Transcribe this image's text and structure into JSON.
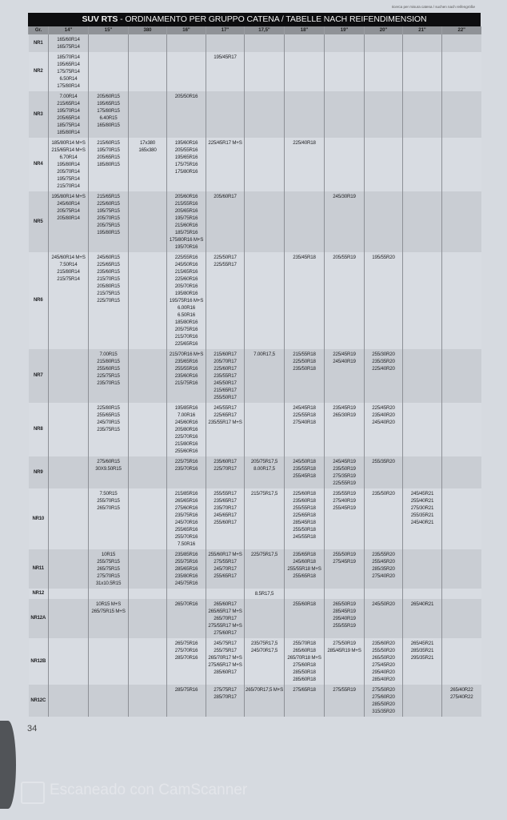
{
  "header_note": "ricerca per misura catena / suchen nach reifengröße",
  "title": {
    "brand": "SUV RTS",
    "text": " - ORDINAMENTO PER GRUPPO CATENA / TABELLE NACH REIFENDIMENSION"
  },
  "columns": [
    "Gr.",
    "14\"",
    "15\"",
    "380",
    "16\"",
    "17\"",
    "17,5\"",
    "18\"",
    "19\"",
    "20\"",
    "21\"",
    "22\""
  ],
  "rows": [
    {
      "group": "NR1",
      "cells": [
        [
          "165/60R14",
          "165/75R14"
        ],
        [],
        [],
        [],
        [],
        [],
        [],
        [],
        [],
        [],
        []
      ]
    },
    {
      "group": "NR2",
      "cells": [
        [
          "185/70R14",
          "195/65R14",
          "175/75R14",
          "6.50R14",
          "175/80R14"
        ],
        [],
        [],
        [],
        [
          "195/45R17"
        ],
        [],
        [],
        [],
        [],
        [],
        []
      ]
    },
    {
      "group": "NR3",
      "cells": [
        [
          "7.00R14",
          "215/65R14",
          "195/70R14",
          "205/65R14",
          "185/75R14",
          "185/80R14"
        ],
        [
          "205/60R15",
          "195/65R15",
          "175/80R15",
          "6.40R15",
          "165/80R15"
        ],
        [],
        [
          "205/50R16"
        ],
        [],
        [],
        [],
        [],
        [],
        [],
        []
      ]
    },
    {
      "group": "NR4",
      "cells": [
        [
          "185/80R14 M+S",
          "215/65R14 M+S",
          "6.70R14",
          "195/80R14",
          "205/70R14",
          "195/75R14",
          "215/70R14"
        ],
        [
          "215/60R15",
          "195/70R15",
          "205/65R15",
          "185/80R15"
        ],
        [
          "17x380",
          "165x380"
        ],
        [
          "195/60R16",
          "205/55R16",
          "195/65R16",
          "175/75R16",
          "175/80R16"
        ],
        [
          "225/45R17 M+S"
        ],
        [],
        [
          "225/40R18"
        ],
        [],
        [],
        [],
        []
      ]
    },
    {
      "group": "NR5",
      "cells": [
        [
          "195/80R14 M+S",
          "245/60R14",
          "205/75R14",
          "205/80R14"
        ],
        [
          "215/65R15",
          "225/60R15",
          "195/75R15",
          "205/70R15",
          "205/75R15",
          "195/80R15"
        ],
        [],
        [
          "205/60R16",
          "215/55R16",
          "205/65R16",
          "195/75R16",
          "215/60R16",
          "185/75R16",
          "175/80R16 M+S",
          "195/70R16"
        ],
        [
          "205/60R17"
        ],
        [],
        [],
        [
          "245/30R19"
        ],
        [],
        [],
        []
      ]
    },
    {
      "group": "NR6",
      "cells": [
        [
          "245/60R14 M+S",
          "7.50R14",
          "215/80R14",
          "215/75R14"
        ],
        [
          "245/60R15",
          "225/65R15",
          "235/60R15",
          "215/70R15",
          "205/80R15",
          "215/75R15",
          "225/70R15"
        ],
        [],
        [
          "225/55R16",
          "245/50R16",
          "215/65R16",
          "225/60R16",
          "205/70R16",
          "195/80R16",
          "195/75R16 M+S",
          "6.00R16",
          "6.50R16",
          "185/80R16",
          "205/75R16",
          "215/70R16",
          "225/65R16"
        ],
        [
          "225/50R17",
          "225/55R17"
        ],
        [],
        [
          "235/45R18"
        ],
        [
          "205/55R19"
        ],
        [
          "195/55R20"
        ],
        [],
        []
      ]
    },
    {
      "group": "NR7",
      "cells": [
        [],
        [
          "7.00R15",
          "215/80R15",
          "255/60R15",
          "225/75R15",
          "235/70R15"
        ],
        [],
        [
          "215/70R16 M+S",
          "235/65R16",
          "255/55R16",
          "235/60R16",
          "215/75R16"
        ],
        [
          "215/60R17",
          "205/70R17",
          "225/60R17",
          "235/55R17",
          "245/50R17",
          "215/65R17",
          "255/50R17"
        ],
        [
          "7.00R17,5"
        ],
        [
          "215/55R18",
          "225/50R18",
          "235/50R18"
        ],
        [
          "225/45R19",
          "245/40R19"
        ],
        [
          "255/30R20",
          "235/35R20",
          "225/40R20"
        ],
        [],
        []
      ]
    },
    {
      "group": "NR8",
      "cells": [
        [],
        [
          "225/80R15",
          "255/65R15",
          "245/70R15",
          "235/75R15"
        ],
        [],
        [
          "195/85R16",
          "7.00R16",
          "245/60R16",
          "205/80R16",
          "225/70R16",
          "215/80R16",
          "255/60R16"
        ],
        [
          "245/55R17",
          "225/65R17",
          "235/55R17 M+S"
        ],
        [],
        [
          "245/45R18",
          "225/55R18",
          "275/40R18"
        ],
        [
          "235/45R19",
          "265/30R19"
        ],
        [
          "225/45R20",
          "235/40R20",
          "245/40R20"
        ],
        [],
        []
      ]
    },
    {
      "group": "NR9",
      "cells": [
        [],
        [
          "275/60R15",
          "30X9.50R15"
        ],
        [],
        [
          "225/75R16",
          "235/70R16"
        ],
        [
          "235/60R17",
          "225/70R17"
        ],
        [
          "205/75R17,5",
          "8.00R17,5"
        ],
        [
          "245/50R18",
          "235/55R18",
          "255/45R18"
        ],
        [
          "245/45R19",
          "235/50R19",
          "275/35R19",
          "225/55R19"
        ],
        [
          "255/35R20"
        ],
        [],
        []
      ]
    },
    {
      "group": "NR10",
      "cells": [
        [],
        [
          "7.50R15",
          "255/70R15",
          "265/70R15"
        ],
        [],
        [
          "215/85R16",
          "265/65R16",
          "275/60R16",
          "235/75R16",
          "245/70R16",
          "255/65R16",
          "255/70R16",
          "7.50R16"
        ],
        [
          "255/55R17",
          "235/65R17",
          "235/70R17",
          "245/65R17",
          "255/60R17"
        ],
        [
          "215/75R17,5"
        ],
        [
          "225/60R18",
          "235/60R18",
          "255/55R18",
          "225/65R18",
          "285/45R18",
          "255/50R18",
          "245/55R18"
        ],
        [
          "235/55R19",
          "275/40R19",
          "255/45R19"
        ],
        [
          "235/50R20"
        ],
        [
          "245/45R21",
          "255/40R21",
          "275/30R21",
          "255/35R21",
          "245/40R21"
        ],
        []
      ]
    },
    {
      "group": "NR11",
      "cells": [
        [],
        [
          "10R15",
          "255/75R15",
          "265/75R15",
          "275/70R15",
          "31x10.5R15"
        ],
        [],
        [
          "235/85R16",
          "255/75R16",
          "285/65R16",
          "235/80R16",
          "245/75R16"
        ],
        [
          "255/60R17 M+S",
          "275/55R17",
          "245/70R17",
          "255/65R17"
        ],
        [
          "225/75R17,5"
        ],
        [
          "235/65R18",
          "245/60R18",
          "255/55R18 M+S",
          "255/65R18"
        ],
        [
          "255/50R19",
          "275/45R19"
        ],
        [
          "235/55R20",
          "255/45R20",
          "285/35R20",
          "275/40R20"
        ],
        [],
        []
      ]
    },
    {
      "group": "NR12",
      "cells": [
        [],
        [],
        [],
        [],
        [],
        [
          "8.5R17,5"
        ],
        [],
        [],
        [],
        [],
        []
      ]
    },
    {
      "group": "NR12A",
      "cells": [
        [],
        [
          "10R15 M+S",
          "265/75R15 M+S"
        ],
        [],
        [
          "265/70R16"
        ],
        [
          "265/60R17",
          "265/65R17 M+S",
          "265/70R17",
          "275/55R17 M+S",
          "275/60R17"
        ],
        [],
        [
          "255/60R18"
        ],
        [
          "265/50R19",
          "285/45R19",
          "295/40R19",
          "255/55R19"
        ],
        [
          "245/50R20"
        ],
        [
          "265/40R21"
        ],
        []
      ]
    },
    {
      "group": "NR12B",
      "cells": [
        [],
        [],
        [],
        [
          "265/75R16",
          "275/70R16",
          "285/70R16"
        ],
        [
          "245/75R17",
          "255/75R17",
          "265/70R17 M+S",
          "275/65R17 M+S",
          "285/60R17"
        ],
        [
          "235/75R17,5",
          "245/70R17,5"
        ],
        [
          "255/70R18",
          "265/60R18",
          "265/70R18 M+S",
          "275/60R18",
          "285/50R18",
          "285/60R18"
        ],
        [
          "275/50R19",
          "285/45R19 M+S"
        ],
        [
          "235/60R20",
          "255/50R20",
          "265/50R20",
          "275/45R20",
          "295/40R20",
          "285/40R20"
        ],
        [
          "265/45R21",
          "285/35R21",
          "295/35R21"
        ],
        []
      ]
    },
    {
      "group": "NR12C",
      "cells": [
        [],
        [],
        [],
        [
          "285/75R16"
        ],
        [
          "275/75R17",
          "285/70R17"
        ],
        [
          "265/70R17,5 M+S"
        ],
        [
          "275/65R18"
        ],
        [
          "275/55R19"
        ],
        [
          "275/50R20",
          "275/60R20",
          "285/50R20",
          "315/35R20"
        ],
        [],
        [
          "265/40R22",
          "275/40R22"
        ]
      ]
    }
  ],
  "page_number": "34",
  "watermark": "Escaneado con CamScanner",
  "colors": {
    "title_bar": "#0d0d0f",
    "column_header": "#8f9297",
    "paper": "#d6dae0"
  }
}
